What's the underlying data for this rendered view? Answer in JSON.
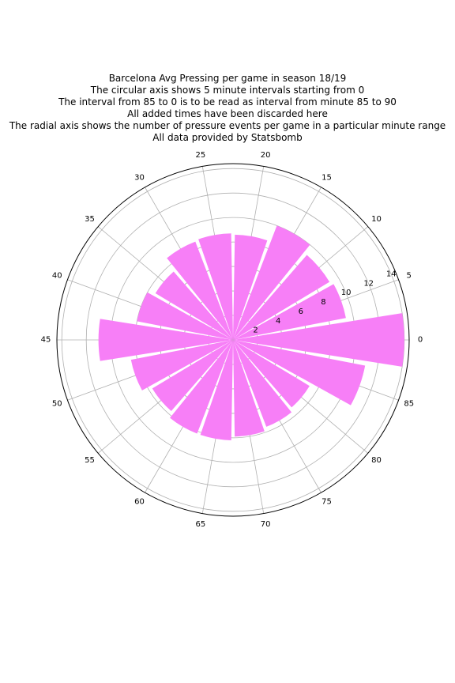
{
  "chart_data": {
    "type": "bar",
    "subtype": "polar",
    "title_lines": [
      "Barcelona Avg Pressing per game in season 18/19",
      "The circular axis shows 5 minute intervals starting from 0",
      "The interval from 85 to 0 is to be read as interval from minute 85 to 90",
      "All added times have been discarded here",
      "The radial axis shows the number of pressure events per game in a particular minute range",
      "All data provided by Statsbomb"
    ],
    "angular_tick_labels": [
      "0",
      "5",
      "10",
      "15",
      "20",
      "25",
      "30",
      "35",
      "40",
      "45",
      "50",
      "55",
      "60",
      "65",
      "70",
      "75",
      "80",
      "85"
    ],
    "radial_tick_labels": [
      "2",
      "4",
      "6",
      "8",
      "10",
      "12",
      "14"
    ],
    "radial_ticks": [
      2,
      4,
      6,
      8,
      10,
      12,
      14
    ],
    "rlim": [
      0,
      14.4
    ],
    "categories": [
      "0-5",
      "5-10",
      "10-15",
      "15-20",
      "20-25",
      "25-30",
      "30-35",
      "35-40",
      "40-45",
      "45-50",
      "50-55",
      "55-60",
      "60-65",
      "65-70",
      "70-75",
      "75-80",
      "80-85",
      "85-90"
    ],
    "values": [
      14.0,
      9.4,
      9.2,
      10.0,
      8.6,
      8.7,
      8.6,
      7.4,
      8.0,
      11.0,
      8.5,
      7.7,
      8.2,
      8.2,
      7.9,
      7.6,
      7.3,
      11.0
    ],
    "bar_color": "#f77ff7",
    "grid": true
  }
}
